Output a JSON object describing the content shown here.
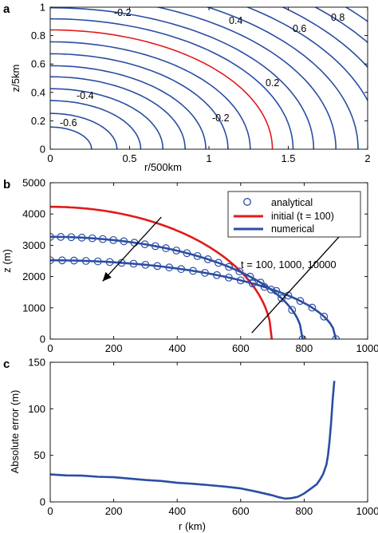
{
  "figure": {
    "panels": [
      "a",
      "b",
      "c"
    ]
  },
  "chart_data": [
    {
      "panel": "a",
      "type": "line",
      "subtype": "contour",
      "xlabel": "r/500km",
      "ylabel": "z/5km",
      "xlim": [
        0,
        2
      ],
      "ylim": [
        0,
        1
      ],
      "xticks": [
        "0",
        "0.5",
        "1",
        "1.5",
        "2"
      ],
      "yticks": [
        "0",
        "0.2",
        "0.4",
        "0.6",
        "0.8",
        "1"
      ],
      "contour_label_texts": [
        "-0.2",
        "0.4",
        "0.6",
        "0.8",
        "0.2",
        "-0.4",
        "-0.2",
        "-0.6"
      ],
      "contour_color": "#2b4ea2",
      "highlight_color": "#e31a1c",
      "contour_radii_r": [
        0.26,
        0.42,
        0.57,
        0.71,
        0.85,
        0.98,
        1.12,
        1.26,
        1.4,
        1.53,
        1.66,
        1.8,
        1.94,
        2.08,
        2.22,
        2.36,
        2.5,
        2.64
      ],
      "contour_z_to_r_ratio": 0.6,
      "highlight_contour_r": 1.4,
      "grid": false
    },
    {
      "panel": "b",
      "type": "line",
      "xlabel": "",
      "ylabel": "z (m)",
      "xlim": [
        0,
        1000
      ],
      "ylim": [
        0,
        5000
      ],
      "xticks": [
        "0",
        "200",
        "400",
        "600",
        "800",
        "1000"
      ],
      "yticks": [
        "0",
        "1000",
        "2000",
        "3000",
        "4000",
        "5000"
      ],
      "legend": {
        "placement": "top-right",
        "entries": [
          "analytical",
          "initial (t = 100)",
          "numerical"
        ]
      },
      "annotation": "t = 100, 1000, 10000",
      "series": [
        {
          "name": "initial (t = 100)",
          "color": "#e31a1c",
          "style": "line",
          "r_max": 698,
          "z_max": 4230
        },
        {
          "name": "numerical",
          "color": "#2b4ea2",
          "style": "line",
          "r_max": 795,
          "z_max": 3270
        },
        {
          "name": "numerical",
          "color": "#2b4ea2",
          "style": "line",
          "r_max": 900,
          "z_max": 2520
        },
        {
          "name": "analytical",
          "color": "#2b4ea2",
          "style": "marker",
          "r_max": 795,
          "z_max": 3270,
          "n": 25
        },
        {
          "name": "analytical",
          "color": "#2b4ea2",
          "style": "marker",
          "r_max": 900,
          "z_max": 2520,
          "n": 25
        }
      ],
      "arrows": [
        {
          "from": [
            350,
            3900
          ],
          "to": [
            165,
            1850
          ]
        },
        {
          "from": [
            635,
            200
          ],
          "to": [
            935,
            3550
          ]
        }
      ],
      "grid": false
    },
    {
      "panel": "c",
      "type": "line",
      "xlabel": "r (km)",
      "ylabel": "Absolute error (m)",
      "xlim": [
        0,
        1000
      ],
      "ylim": [
        0,
        150
      ],
      "xticks": [
        "0",
        "200",
        "400",
        "600",
        "800",
        "1000"
      ],
      "yticks": [
        "0",
        "50",
        "100",
        "150"
      ],
      "series": [
        {
          "name": "absolute error",
          "color": "#2b4ea2",
          "x": [
            0,
            50,
            100,
            150,
            200,
            250,
            300,
            350,
            400,
            450,
            500,
            550,
            600,
            650,
            700,
            720,
            740,
            760,
            780,
            800,
            820,
            840,
            850,
            860,
            870,
            875,
            880,
            885,
            890,
            895
          ],
          "y": [
            29.5,
            28.5,
            28.2,
            27,
            26.5,
            25,
            23.5,
            22.5,
            20.5,
            19.5,
            18,
            16.5,
            14.5,
            11,
            7,
            5,
            3.5,
            4,
            5.5,
            9,
            14,
            19,
            24,
            30,
            40,
            50,
            65,
            85,
            110,
            130
          ]
        }
      ],
      "grid": false
    }
  ]
}
